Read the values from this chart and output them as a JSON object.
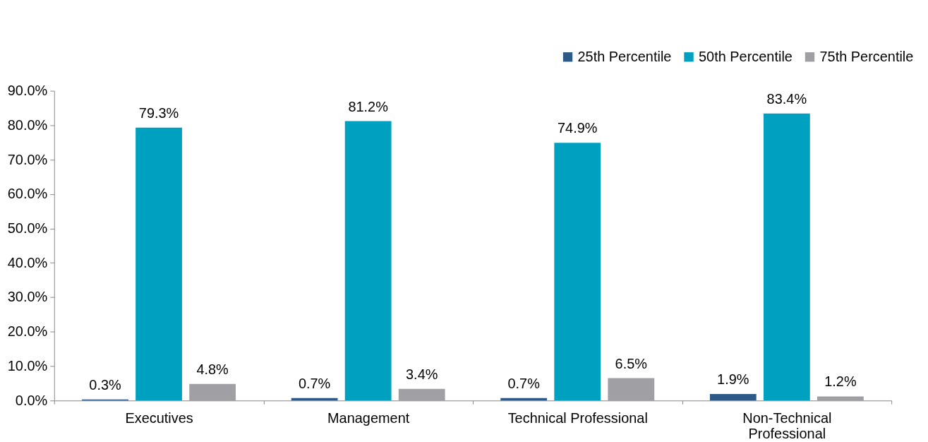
{
  "chart_data": {
    "type": "bar",
    "categories": [
      "Executives",
      "Management",
      "Technical Professional",
      "Non-Technical Professional"
    ],
    "series": [
      {
        "name": "25th Percentile",
        "color": "#2e5a87",
        "values": [
          0.3,
          0.7,
          0.7,
          1.9
        ],
        "value_labels": [
          "0.3%",
          "0.7%",
          "0.7%",
          "1.9%"
        ]
      },
      {
        "name": "50th Percentile",
        "color": "#00a0c0",
        "values": [
          79.3,
          81.2,
          74.9,
          83.4
        ],
        "value_labels": [
          "79.3%",
          "81.2%",
          "74.9%",
          "83.4%"
        ]
      },
      {
        "name": "75th Percentile",
        "color": "#a0a0a4",
        "values": [
          4.8,
          3.4,
          6.5,
          1.2
        ],
        "value_labels": [
          "4.8%",
          "3.4%",
          "6.5%",
          "1.2%"
        ]
      }
    ],
    "ylim": [
      0,
      90
    ],
    "yticks": [
      {
        "value": 0,
        "label": "0.0%"
      },
      {
        "value": 10,
        "label": "10.0%"
      },
      {
        "value": 20,
        "label": "20.0%"
      },
      {
        "value": 30,
        "label": "30.0%"
      },
      {
        "value": 40,
        "label": "40.0%"
      },
      {
        "value": 50,
        "label": "50.0%"
      },
      {
        "value": 60,
        "label": "60.0%"
      },
      {
        "value": 70,
        "label": "70.0%"
      },
      {
        "value": 80,
        "label": "80.0%"
      },
      {
        "value": 90,
        "label": "90.0%"
      }
    ],
    "grid": false,
    "legend": "top right"
  }
}
